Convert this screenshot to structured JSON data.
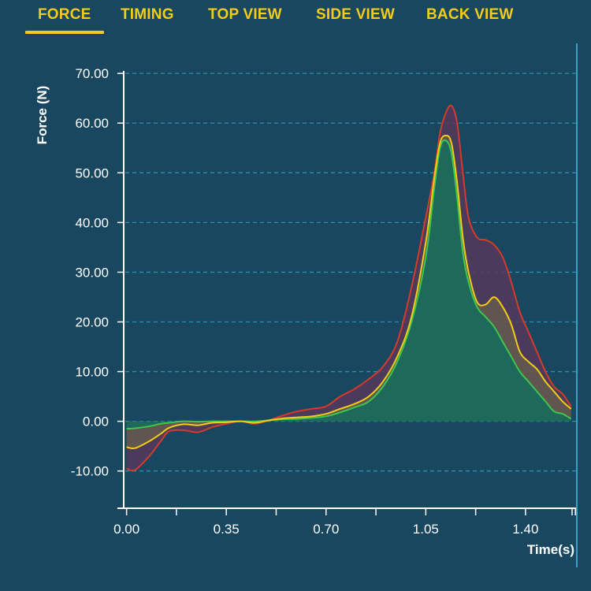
{
  "tabs": [
    {
      "label": "FORCE",
      "active": true
    },
    {
      "label": "TIMING",
      "active": false
    },
    {
      "label": "TOP VIEW",
      "active": false
    },
    {
      "label": "SIDE VIEW",
      "active": false
    },
    {
      "label": "BACK VIEW",
      "active": false
    }
  ],
  "colors": {
    "background": "#19475f",
    "accent": "#f3cc17",
    "grid": "#2f8fb0",
    "axis": "#ffffff",
    "series_red": "#d63a2b",
    "series_yellow": "#f3cc17",
    "series_green": "#3ec64c",
    "band_fill": "#55385a",
    "green_fill": "#1f6b5a"
  },
  "chart_data": {
    "type": "line",
    "title": "",
    "xlabel": "Time(s)",
    "ylabel": "Force (N)",
    "xlim": [
      -0.01,
      1.58
    ],
    "ylim": [
      -17.5,
      70.5
    ],
    "grid": true,
    "x_ticks": [
      0.0,
      0.35,
      0.7,
      1.05,
      1.4
    ],
    "x_tick_labels": [
      "0.00",
      "0.35",
      "0.70",
      "1.05",
      "1.40"
    ],
    "y_ticks": [
      70,
      60,
      50,
      40,
      30,
      20,
      10,
      0,
      -10
    ],
    "y_tick_labels": [
      "70.00",
      "60.00",
      "50.00",
      "40.00",
      "30.00",
      "20.00",
      "10.00",
      "0.00",
      "-10.00"
    ],
    "series": [
      {
        "color": "#d63a2b",
        "x": [
          0.0,
          0.03,
          0.08,
          0.12,
          0.15,
          0.2,
          0.25,
          0.3,
          0.35,
          0.4,
          0.45,
          0.5,
          0.55,
          0.6,
          0.65,
          0.7,
          0.75,
          0.8,
          0.85,
          0.9,
          0.95,
          1.0,
          1.05,
          1.08,
          1.1,
          1.12,
          1.14,
          1.16,
          1.18,
          1.2,
          1.23,
          1.26,
          1.29,
          1.32,
          1.35,
          1.38,
          1.41,
          1.44,
          1.47,
          1.5,
          1.53,
          1.56
        ],
        "y": [
          -9.5,
          -9.8,
          -7.0,
          -4.0,
          -2.0,
          -1.8,
          -2.2,
          -1.2,
          -0.5,
          0.0,
          -0.5,
          0.2,
          1.2,
          2.0,
          2.5,
          3.0,
          5.0,
          6.5,
          8.5,
          11.0,
          16.0,
          27.0,
          41.0,
          50.0,
          58.0,
          62.0,
          63.5,
          60.0,
          50.0,
          41.0,
          37.0,
          36.5,
          35.5,
          33.0,
          28.0,
          22.0,
          18.0,
          14.0,
          10.0,
          7.0,
          5.5,
          3.0
        ]
      },
      {
        "color": "#f3cc17",
        "x": [
          0.0,
          0.03,
          0.08,
          0.12,
          0.15,
          0.2,
          0.25,
          0.3,
          0.35,
          0.4,
          0.45,
          0.5,
          0.55,
          0.6,
          0.65,
          0.7,
          0.75,
          0.8,
          0.85,
          0.9,
          0.95,
          1.0,
          1.05,
          1.08,
          1.1,
          1.12,
          1.14,
          1.16,
          1.18,
          1.2,
          1.23,
          1.26,
          1.29,
          1.32,
          1.35,
          1.38,
          1.41,
          1.44,
          1.47,
          1.5,
          1.53,
          1.56
        ],
        "y": [
          -5.2,
          -5.4,
          -4.0,
          -2.5,
          -1.3,
          -0.6,
          -0.8,
          -0.3,
          -0.2,
          0.0,
          -0.3,
          0.2,
          0.6,
          0.8,
          1.0,
          1.5,
          2.5,
          3.5,
          5.0,
          8.0,
          13.0,
          21.0,
          36.0,
          49.0,
          56.0,
          57.5,
          56.0,
          48.0,
          37.0,
          30.0,
          24.0,
          23.5,
          25.0,
          23.0,
          19.5,
          14.0,
          12.0,
          10.5,
          8.0,
          6.0,
          4.0,
          2.5
        ]
      },
      {
        "color": "#3ec64c",
        "x": [
          0.0,
          0.03,
          0.08,
          0.12,
          0.15,
          0.2,
          0.25,
          0.3,
          0.35,
          0.4,
          0.45,
          0.5,
          0.55,
          0.6,
          0.65,
          0.7,
          0.75,
          0.8,
          0.85,
          0.9,
          0.95,
          1.0,
          1.05,
          1.08,
          1.1,
          1.12,
          1.14,
          1.16,
          1.18,
          1.2,
          1.23,
          1.26,
          1.29,
          1.32,
          1.35,
          1.38,
          1.41,
          1.44,
          1.47,
          1.5,
          1.53,
          1.56
        ],
        "y": [
          -1.5,
          -1.4,
          -1.0,
          -0.5,
          -0.3,
          0.0,
          -0.1,
          0.0,
          0.0,
          0.0,
          0.0,
          0.2,
          0.4,
          0.5,
          0.7,
          1.0,
          1.8,
          2.8,
          4.0,
          7.0,
          12.0,
          20.0,
          33.0,
          47.0,
          55.0,
          56.5,
          54.0,
          45.0,
          34.0,
          28.0,
          23.0,
          21.0,
          19.0,
          16.0,
          13.0,
          10.0,
          8.0,
          6.0,
          4.0,
          2.0,
          1.5,
          0.5
        ]
      }
    ]
  }
}
